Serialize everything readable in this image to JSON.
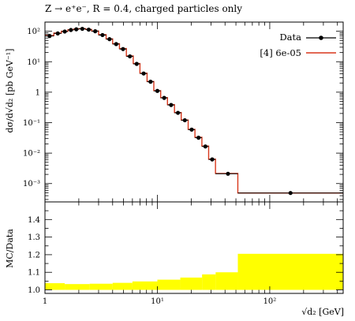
{
  "chart_data": [
    {
      "type": "line",
      "title": "Z → e⁺e⁻, R = 0.4, charged particles only",
      "ylabel": "dσ/d√d₂ [pb GeV⁻¹]",
      "x_scale": "log",
      "y_scale": "log",
      "xlim": [
        1,
        450
      ],
      "ylim": [
        0.00025,
        200
      ],
      "y_ticks": [
        {
          "value": 0.001,
          "label": "10⁻³"
        },
        {
          "value": 0.01,
          "label": "10⁻²"
        },
        {
          "value": 0.1,
          "label": "10⁻¹"
        },
        {
          "value": 1,
          "label": "1"
        },
        {
          "value": 10,
          "label": "10¹"
        },
        {
          "value": 100,
          "label": "10²"
        }
      ],
      "legend": {
        "placement": "top-right"
      },
      "bin_edges": [
        1,
        1.2,
        1.4,
        1.6,
        1.8,
        2.0,
        2.3,
        2.6,
        3.0,
        3.5,
        4.0,
        4.6,
        5.3,
        6.1,
        7.0,
        8.1,
        9.3,
        10.7,
        12.3,
        14.2,
        16.3,
        18.8,
        21.6,
        24.9,
        28.6,
        32.9,
        52,
        450
      ],
      "series": [
        {
          "name": "Data",
          "style": "points",
          "color": "#000000",
          "x": [
            1.1,
            1.3,
            1.5,
            1.7,
            1.9,
            2.15,
            2.45,
            2.8,
            3.25,
            3.75,
            4.3,
            4.95,
            5.7,
            6.55,
            7.55,
            8.7,
            10.0,
            11.5,
            13.25,
            15.25,
            17.55,
            20.2,
            23.25,
            26.75,
            30.75,
            42.5,
            153
          ],
          "values": [
            70,
            85,
            98,
            110,
            116,
            120,
            113,
            100,
            75,
            55,
            38,
            26,
            15,
            8.5,
            4.1,
            2.2,
            1.1,
            0.65,
            0.38,
            0.21,
            0.12,
            0.059,
            0.032,
            0.0165,
            0.0062,
            0.0021,
            0.00049
          ]
        },
        {
          "name": "[4] 6e-05",
          "style": "histogram",
          "color": "#d9371b",
          "values": [
            72,
            87,
            100,
            112,
            118,
            122,
            115,
            102,
            77,
            56,
            39,
            27,
            15.5,
            8.7,
            4.2,
            2.25,
            1.12,
            0.66,
            0.39,
            0.215,
            0.122,
            0.06,
            0.033,
            0.017,
            0.0063,
            0.00215,
            0.00049
          ]
        }
      ]
    },
    {
      "type": "area",
      "ylabel": "MC/Data",
      "x_scale": "log",
      "xlabel": "√d₂ [GeV]",
      "xlim": [
        1,
        450
      ],
      "ylim": [
        0.98,
        1.5
      ],
      "x_ticks": [
        {
          "value": 1,
          "label": "1"
        },
        {
          "value": 10,
          "label": "10¹"
        },
        {
          "value": 100,
          "label": "10²"
        }
      ],
      "y_ticks": [
        1.0,
        1.1,
        1.2,
        1.3,
        1.4
      ],
      "y_tick_labels": [
        "1.0",
        "1.1",
        "1.2",
        "1.3",
        "1.4"
      ],
      "band_color": "#ffff00",
      "bin_edges": [
        1,
        1.5,
        2.5,
        4,
        6,
        10,
        16,
        25,
        33,
        52,
        450
      ],
      "band_upper": [
        1.038,
        1.033,
        1.035,
        1.04,
        1.048,
        1.058,
        1.07,
        1.088,
        1.1,
        1.205
      ],
      "band_lower": [
        1.0,
        1.0,
        1.0,
        1.0,
        1.0,
        1.0,
        1.0,
        1.0,
        1.0,
        1.0
      ]
    }
  ]
}
